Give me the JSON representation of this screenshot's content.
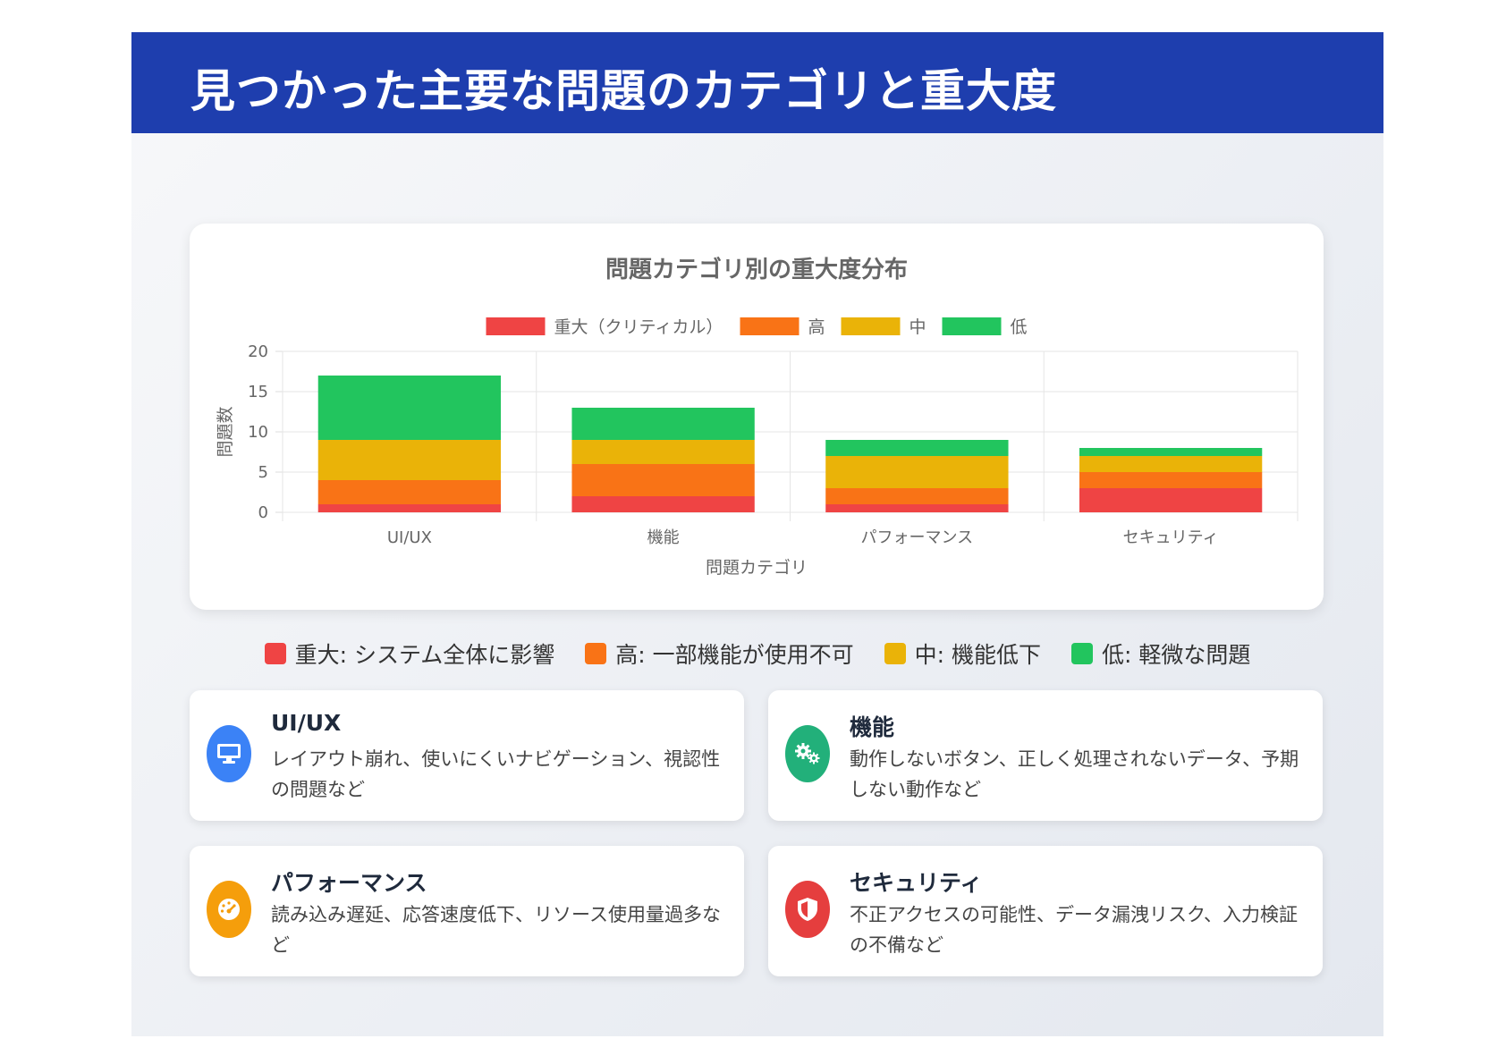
{
  "header": {
    "title": "見つかった主要な問題のカテゴリと重大度"
  },
  "chart_data": {
    "type": "bar",
    "stacked": true,
    "title": "問題カテゴリ別の重大度分布",
    "categories": [
      "UI/UX",
      "機能",
      "パフォーマンス",
      "セキュリティ"
    ],
    "series": [
      {
        "name": "重大（クリティカル）",
        "color": "#ef4444",
        "values": [
          1,
          2,
          1,
          3
        ]
      },
      {
        "name": "高",
        "color": "#f97316",
        "values": [
          3,
          4,
          2,
          2
        ]
      },
      {
        "name": "中",
        "color": "#eab308",
        "values": [
          5,
          3,
          4,
          2
        ]
      },
      {
        "name": "低",
        "color": "#22c55e",
        "values": [
          8,
          4,
          2,
          1
        ]
      }
    ],
    "xlabel": "問題カテゴリ",
    "ylabel": "問題数",
    "ylim": [
      0,
      20
    ],
    "yticks": [
      0,
      5,
      10,
      15,
      20
    ],
    "legend_position": "top",
    "grid": true
  },
  "severity_legend": [
    {
      "label": "重大: システム全体に影響",
      "color": "#ef4444"
    },
    {
      "label": "高: 一部機能が使用不可",
      "color": "#f97316"
    },
    {
      "label": "中: 機能低下",
      "color": "#eab308"
    },
    {
      "label": "低: 軽微な問題",
      "color": "#22c55e"
    }
  ],
  "categories": [
    {
      "title": "UI/UX",
      "desc": "レイアウト崩れ、使いにくいナビゲーション、視認性の問題など",
      "icon": "monitor-icon",
      "color": "#3b82f6"
    },
    {
      "title": "機能",
      "desc": "動作しないボタン、正しく処理されないデータ、予期しない動作など",
      "icon": "gears-icon",
      "color": "#22b07a"
    },
    {
      "title": "パフォーマンス",
      "desc": "読み込み遅延、応答速度低下、リソース使用量過多など",
      "icon": "speedometer-icon",
      "color": "#f59e0b"
    },
    {
      "title": "セキュリティ",
      "desc": "不正アクセスの可能性、データ漏洩リスク、入力検証の不備など",
      "icon": "shield-icon",
      "color": "#e53e3e"
    }
  ]
}
